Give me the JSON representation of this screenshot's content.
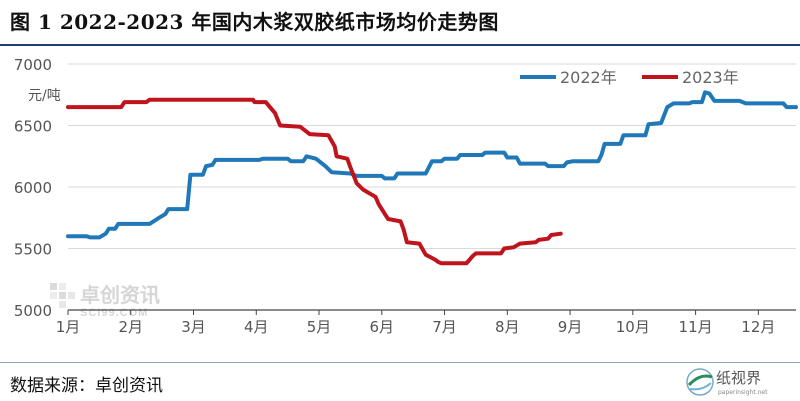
{
  "header": {
    "title": "图 1 2022-2023 年国内木浆双胶纸市场均价走势图"
  },
  "footer": {
    "source": "数据来源：卓创资讯",
    "logo_text": "纸视界",
    "logo_subtext": "paperinsight.net"
  },
  "watermark": {
    "name": "卓创资讯",
    "sub": "SCI99.COM"
  },
  "colors": {
    "series_2022": "#2178b8",
    "series_2023": "#c0141c",
    "title_rule": "#1f3f73"
  },
  "chart_data": {
    "type": "line",
    "title": "",
    "xlabel": "",
    "ylabel": "元/吨",
    "ylim": [
      5000,
      7000
    ],
    "yticks": [
      5000,
      5500,
      6000,
      6500,
      7000
    ],
    "xlim": [
      1,
      12.6
    ],
    "grid": "horizontal",
    "legend": "top-right",
    "categories": [
      "1月",
      "2月",
      "3月",
      "4月",
      "5月",
      "6月",
      "7月",
      "8月",
      "9月",
      "10月",
      "11月",
      "12月"
    ],
    "series": [
      {
        "name": "2022年",
        "points": [
          [
            1.0,
            5600
          ],
          [
            1.3,
            5600
          ],
          [
            1.35,
            5590
          ],
          [
            1.5,
            5590
          ],
          [
            1.6,
            5620
          ],
          [
            1.65,
            5660
          ],
          [
            1.75,
            5660
          ],
          [
            1.8,
            5700
          ],
          [
            2.3,
            5700
          ],
          [
            2.45,
            5750
          ],
          [
            2.55,
            5780
          ],
          [
            2.6,
            5820
          ],
          [
            2.9,
            5820
          ],
          [
            2.95,
            6100
          ],
          [
            3.15,
            6100
          ],
          [
            3.2,
            6170
          ],
          [
            3.3,
            6180
          ],
          [
            3.35,
            6220
          ],
          [
            4.05,
            6220
          ],
          [
            4.1,
            6230
          ],
          [
            4.5,
            6230
          ],
          [
            4.55,
            6210
          ],
          [
            4.75,
            6210
          ],
          [
            4.8,
            6250
          ],
          [
            4.95,
            6230
          ],
          [
            5.1,
            6170
          ],
          [
            5.2,
            6120
          ],
          [
            5.5,
            6110
          ],
          [
            5.6,
            6090
          ],
          [
            6.0,
            6090
          ],
          [
            6.05,
            6070
          ],
          [
            6.2,
            6070
          ],
          [
            6.25,
            6110
          ],
          [
            6.7,
            6110
          ],
          [
            6.8,
            6210
          ],
          [
            6.95,
            6210
          ],
          [
            7.0,
            6230
          ],
          [
            7.2,
            6230
          ],
          [
            7.25,
            6260
          ],
          [
            7.6,
            6260
          ],
          [
            7.65,
            6280
          ],
          [
            7.95,
            6280
          ],
          [
            8.0,
            6240
          ],
          [
            8.15,
            6240
          ],
          [
            8.2,
            6190
          ],
          [
            8.6,
            6190
          ],
          [
            8.65,
            6170
          ],
          [
            8.9,
            6170
          ],
          [
            8.95,
            6200
          ],
          [
            9.05,
            6210
          ],
          [
            9.45,
            6210
          ],
          [
            9.5,
            6260
          ],
          [
            9.55,
            6350
          ],
          [
            9.8,
            6350
          ],
          [
            9.85,
            6420
          ],
          [
            10.2,
            6420
          ],
          [
            10.25,
            6510
          ],
          [
            10.45,
            6520
          ],
          [
            10.55,
            6650
          ],
          [
            10.65,
            6680
          ],
          [
            10.9,
            6680
          ],
          [
            10.95,
            6690
          ],
          [
            11.1,
            6690
          ],
          [
            11.15,
            6770
          ],
          [
            11.22,
            6760
          ],
          [
            11.3,
            6700
          ],
          [
            11.7,
            6700
          ],
          [
            11.8,
            6680
          ],
          [
            12.4,
            6680
          ],
          [
            12.45,
            6650
          ],
          [
            12.6,
            6650
          ]
        ]
      },
      {
        "name": "2023年",
        "points": [
          [
            1.0,
            6650
          ],
          [
            1.85,
            6650
          ],
          [
            1.9,
            6690
          ],
          [
            2.25,
            6690
          ],
          [
            2.3,
            6710
          ],
          [
            3.95,
            6710
          ],
          [
            3.97,
            6690
          ],
          [
            4.15,
            6690
          ],
          [
            4.3,
            6600
          ],
          [
            4.38,
            6500
          ],
          [
            4.7,
            6490
          ],
          [
            4.85,
            6430
          ],
          [
            5.15,
            6420
          ],
          [
            5.25,
            6330
          ],
          [
            5.28,
            6250
          ],
          [
            5.45,
            6230
          ],
          [
            5.5,
            6160
          ],
          [
            5.6,
            6030
          ],
          [
            5.7,
            5980
          ],
          [
            5.8,
            5950
          ],
          [
            5.9,
            5920
          ],
          [
            5.95,
            5860
          ],
          [
            6.05,
            5780
          ],
          [
            6.1,
            5740
          ],
          [
            6.3,
            5720
          ],
          [
            6.35,
            5650
          ],
          [
            6.4,
            5550
          ],
          [
            6.6,
            5540
          ],
          [
            6.7,
            5450
          ],
          [
            6.85,
            5410
          ],
          [
            6.9,
            5390
          ],
          [
            6.95,
            5380
          ],
          [
            7.35,
            5380
          ],
          [
            7.45,
            5440
          ],
          [
            7.5,
            5460
          ],
          [
            7.9,
            5460
          ],
          [
            7.95,
            5500
          ],
          [
            8.1,
            5510
          ],
          [
            8.2,
            5540
          ],
          [
            8.45,
            5550
          ],
          [
            8.5,
            5570
          ],
          [
            8.65,
            5580
          ],
          [
            8.7,
            5610
          ],
          [
            8.85,
            5620
          ]
        ]
      }
    ]
  }
}
